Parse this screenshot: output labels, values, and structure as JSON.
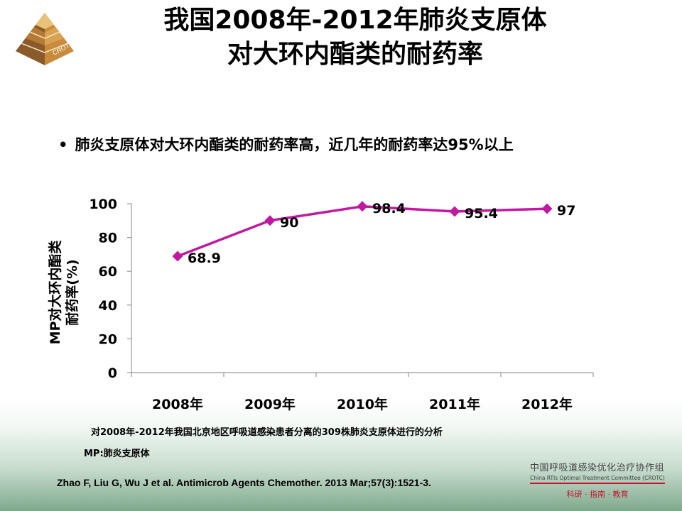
{
  "logo": {
    "text": "CROTC"
  },
  "title": {
    "line1": "我国2008年-2012年肺炎支原体",
    "line2": "对大环内酯类的耐药率"
  },
  "bullet": {
    "marker": "•",
    "text": "肺炎支原体对大环内酯类的耐药率高，近几年的耐药率达95%以上"
  },
  "chart_data": {
    "type": "line",
    "categories": [
      "2008年",
      "2009年",
      "2010年",
      "2011年",
      "2012年"
    ],
    "values": [
      68.9,
      90,
      98.4,
      95.4,
      97
    ],
    "data_labels": [
      "68.9",
      "90",
      "98.4",
      "95.4",
      "97"
    ],
    "ylabel_line1": "MP对大环内酯类",
    "ylabel_line2": "耐药率(%)",
    "ylim": [
      0,
      100
    ],
    "yticks": [
      0,
      20,
      40,
      60,
      80,
      100
    ],
    "grid": false,
    "series_color": "#c0189f"
  },
  "notes": {
    "source": "对2008年-2012年我国北京地区呼吸道感染患者分离的309株肺炎支原体进行的分析",
    "abbr": "MP:肺炎支原体"
  },
  "reference": "Zhao F, Liu G, Wu J et al. Antimicrob Agents Chemother. 2013 Mar;57(3):1521-3.",
  "org": {
    "cn": "中国呼吸道感染优化治疗协作组",
    "en": "China RTIs Optimal Treatment Committee (CROTC)",
    "motto": "科研 · 指南 · 教育"
  }
}
